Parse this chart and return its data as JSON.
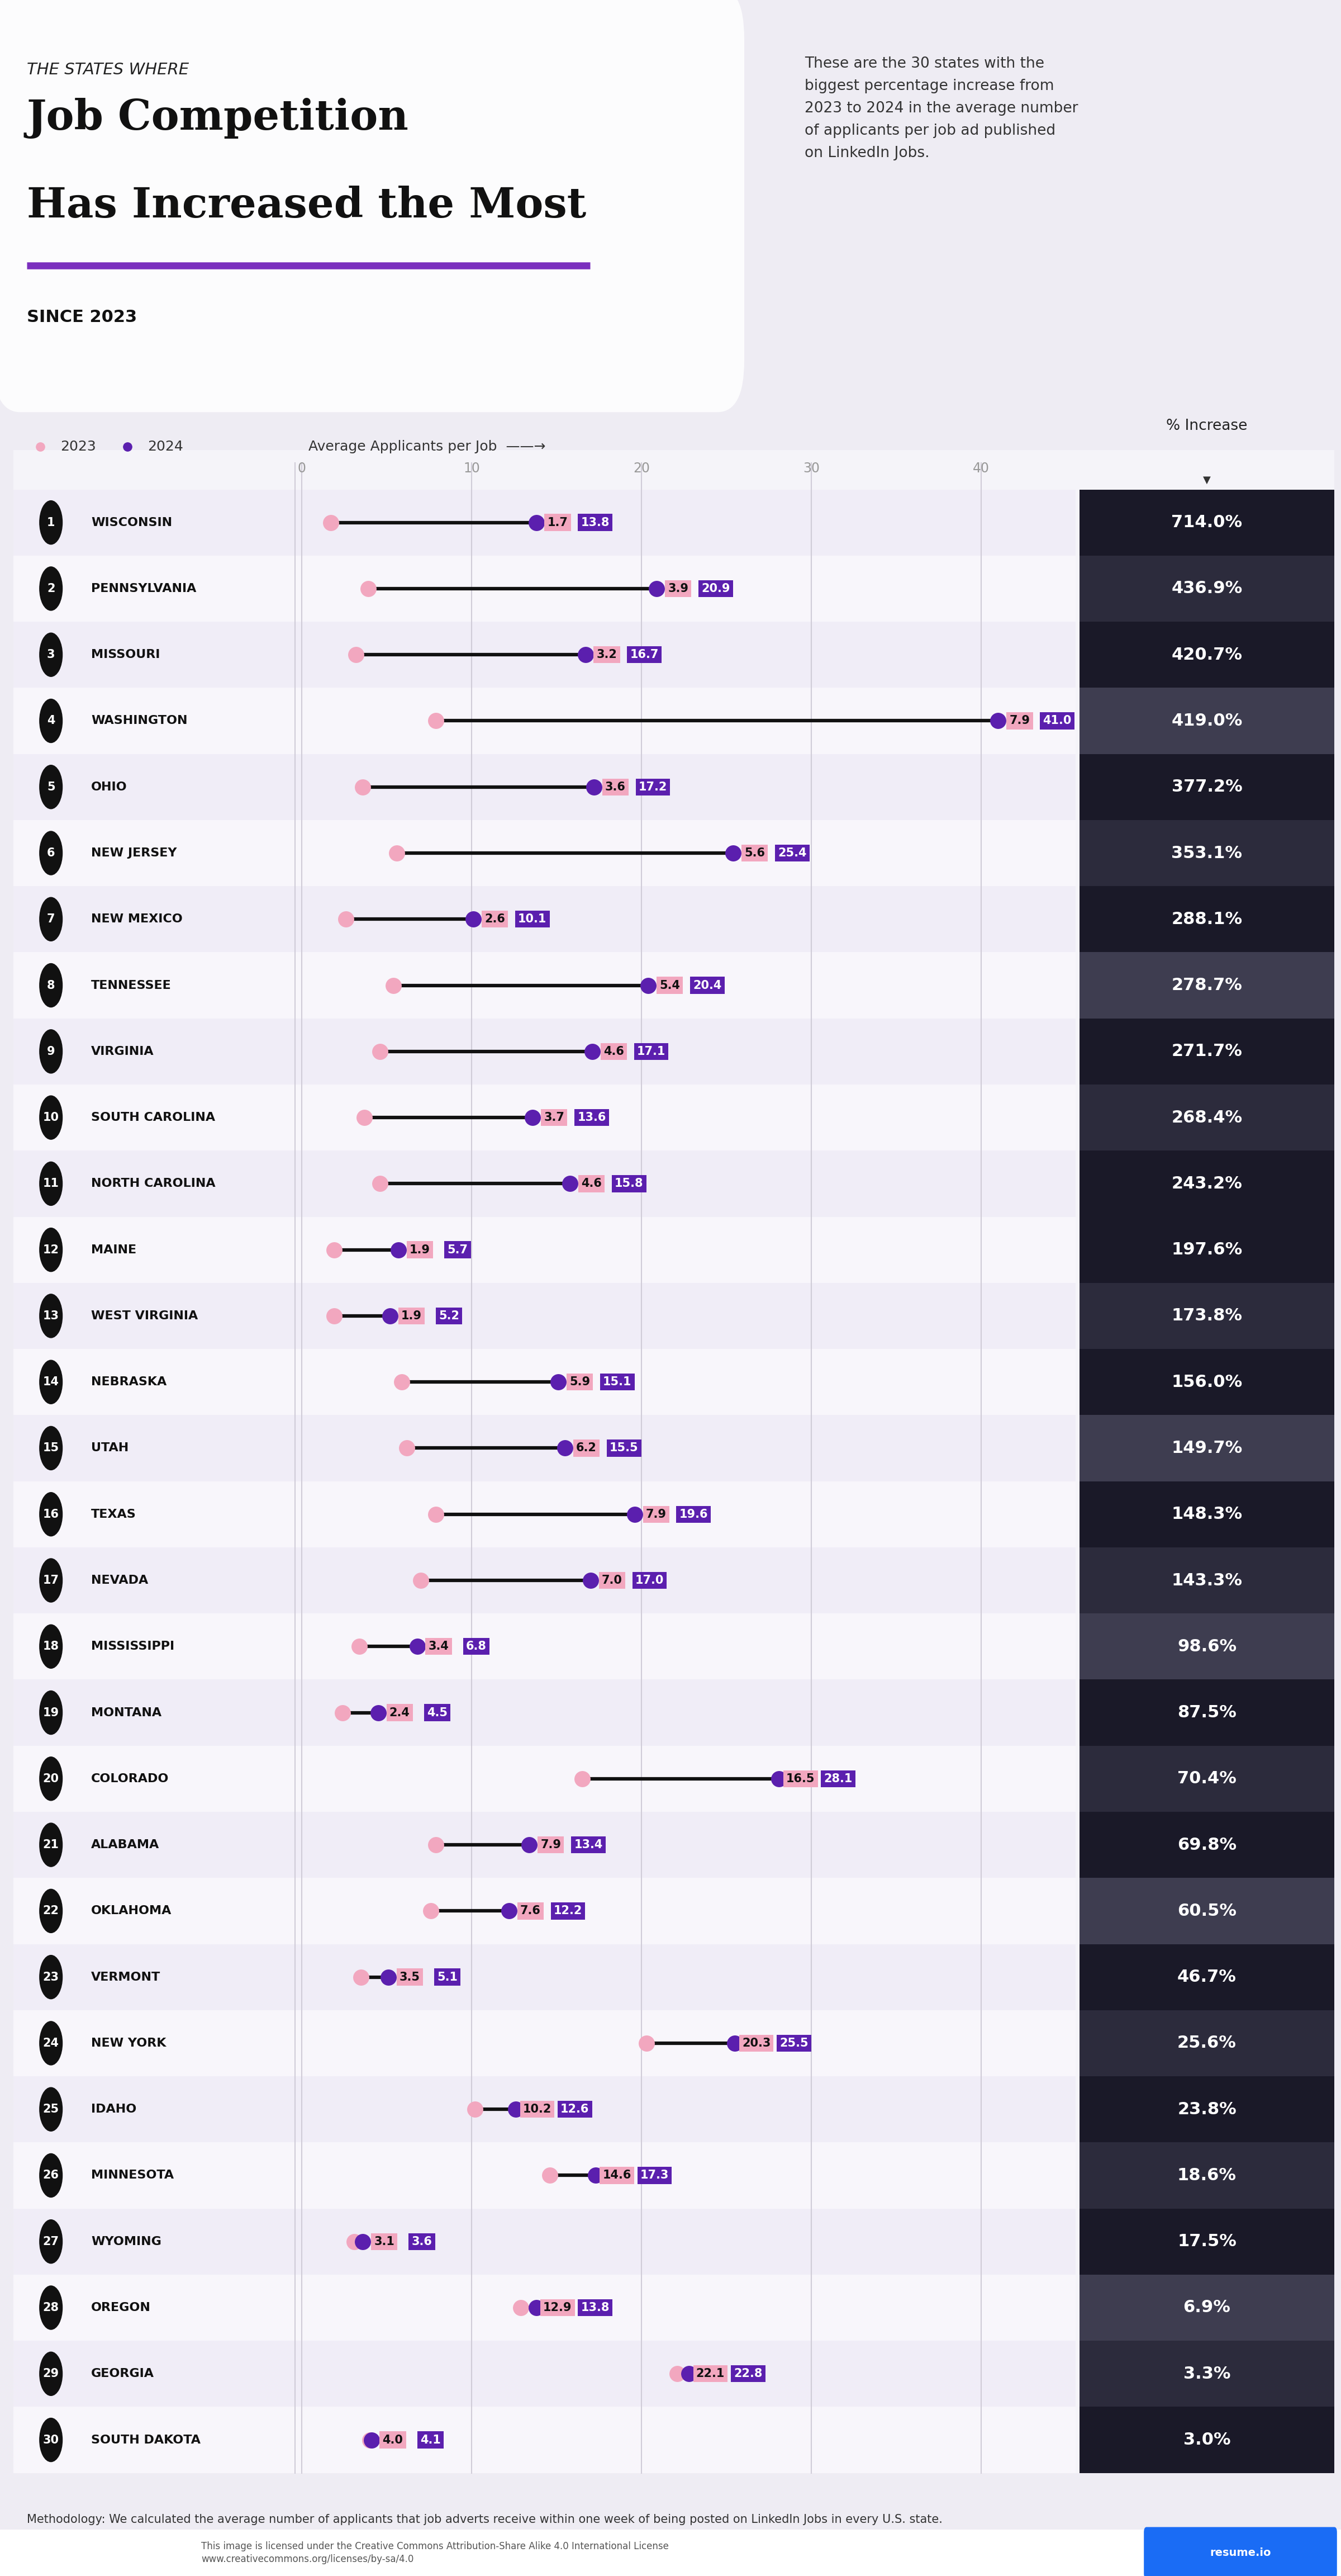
{
  "states": [
    "WISCONSIN",
    "PENNSYLVANIA",
    "MISSOURI",
    "WASHINGTON",
    "OHIO",
    "NEW JERSEY",
    "NEW MEXICO",
    "TENNESSEE",
    "VIRGINIA",
    "SOUTH CAROLINA",
    "NORTH CAROLINA",
    "MAINE",
    "WEST VIRGINIA",
    "NEBRASKA",
    "UTAH",
    "TEXAS",
    "NEVADA",
    "MISSISSIPPI",
    "MONTANA",
    "COLORADO",
    "ALABAMA",
    "OKLAHOMA",
    "VERMONT",
    "NEW YORK",
    "IDAHO",
    "MINNESOTA",
    "WYOMING",
    "OREGON",
    "GEORGIA",
    "SOUTH DAKOTA"
  ],
  "val_2023": [
    1.7,
    3.9,
    3.2,
    7.9,
    3.6,
    5.6,
    2.6,
    5.4,
    4.6,
    3.7,
    4.6,
    1.9,
    1.9,
    5.9,
    6.2,
    7.9,
    7.0,
    3.4,
    2.4,
    16.5,
    7.9,
    7.6,
    3.5,
    20.3,
    10.2,
    14.6,
    3.1,
    12.9,
    22.1,
    4.0
  ],
  "val_2024": [
    13.8,
    20.9,
    16.7,
    41.0,
    17.2,
    25.4,
    10.1,
    20.4,
    17.1,
    13.6,
    15.8,
    5.7,
    5.2,
    15.1,
    15.5,
    19.6,
    17.0,
    6.8,
    4.5,
    28.1,
    13.4,
    12.2,
    5.1,
    25.5,
    12.6,
    17.3,
    3.6,
    13.8,
    22.8,
    4.1
  ],
  "pct_increase": [
    "714.0%",
    "436.9%",
    "420.7%",
    "419.0%",
    "377.2%",
    "353.1%",
    "288.1%",
    "278.7%",
    "271.7%",
    "268.4%",
    "243.2%",
    "197.6%",
    "173.8%",
    "156.0%",
    "149.7%",
    "148.3%",
    "143.3%",
    "98.6%",
    "87.5%",
    "70.4%",
    "69.8%",
    "60.5%",
    "46.7%",
    "25.6%",
    "23.8%",
    "18.6%",
    "17.5%",
    "6.9%",
    "3.3%",
    "3.0%"
  ],
  "title_top": "THE STATES WHERE",
  "title_main1": "Job Competition",
  "title_main2": "Has Increased the Most",
  "title_sub": "SINCE 2023",
  "desc_text": "These are the 30 states with the\nbiggest percentage increase from\n2023 to 2024 in the average number\nof applicants per job ad published\non LinkedIn Jobs.",
  "axis_label": "Average Applicants per Job",
  "pct_header": "% Increase",
  "bg_color": "#eeecf3",
  "color_2023": "#f2a7bf",
  "color_2024": "#5b1fae",
  "line_color": "#111111",
  "label_bg_2023": "#f2a7bf",
  "label_bg_2024": "#5b1fae",
  "x_max": 45,
  "x_ticks": [
    0,
    10,
    20,
    30,
    40
  ],
  "methodology": "Methodology: We calculated the average number of applicants that job adverts receive within one week of being posted on LinkedIn Jobs in every U.S. state."
}
